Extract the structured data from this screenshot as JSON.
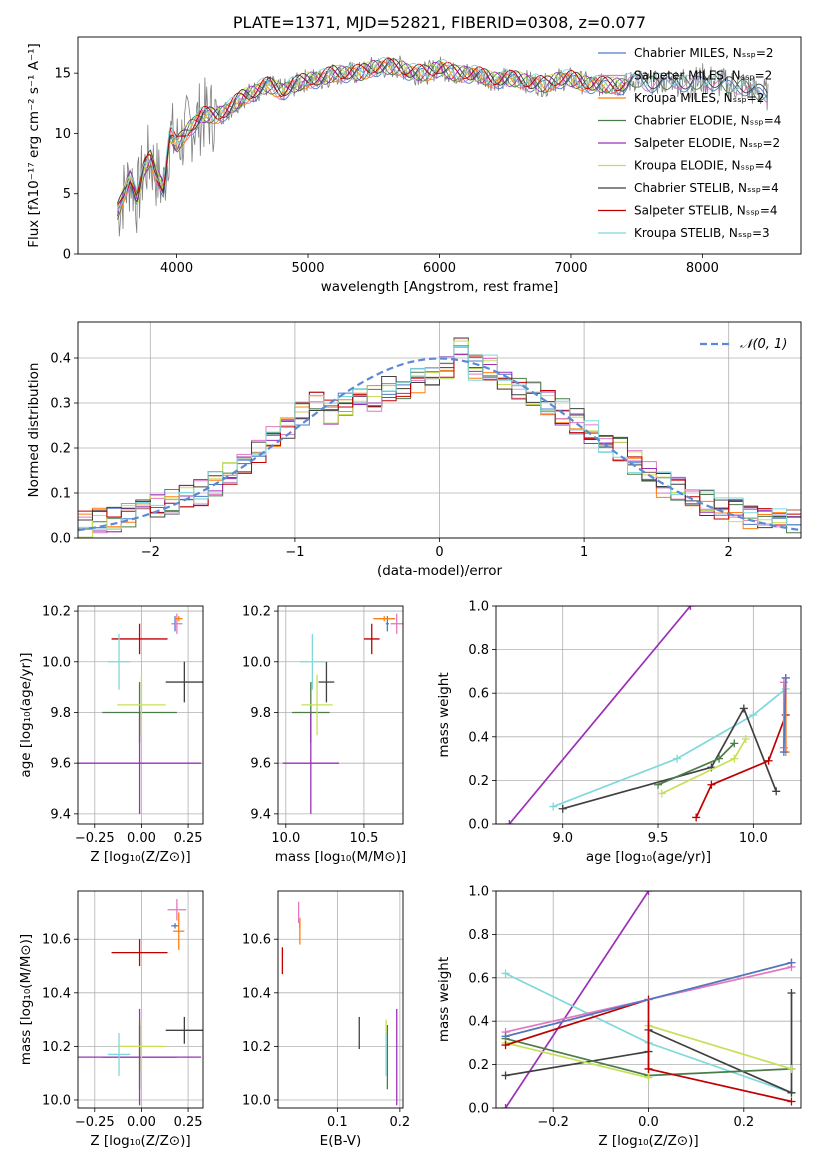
{
  "chart_data": [
    {
      "id": "spectrum",
      "type": "line",
      "title": "PLATE=1371, MJD=52821, FIBERID=0308, z=0.077",
      "xlabel": "wavelength [Angstrom, rest frame]",
      "ylabel": "Flux [fλ10⁻¹⁷ erg cm⁻² s⁻¹ A⁻¹]",
      "xlim": [
        3250,
        8750
      ],
      "ylim": [
        0,
        18
      ],
      "xticks": [
        4000,
        5000,
        6000,
        7000,
        8000
      ],
      "yticks": [
        0,
        5,
        10,
        15
      ],
      "legend": "upper-right",
      "grid": false,
      "data_series": [
        {
          "name": "data",
          "color": "#808080",
          "x": [
            3550,
            3600,
            3650,
            3700,
            3750,
            3800,
            3850,
            3900,
            3950,
            4000,
            4100,
            4200,
            4300,
            4400,
            4500,
            4600,
            4700,
            4800,
            4900,
            5000,
            5100,
            5200,
            5300,
            5400,
            5500,
            5600,
            5700,
            5800,
            5900,
            6000,
            6100,
            6200,
            6300,
            6400,
            6500,
            6600,
            6700,
            6800,
            6900,
            7000,
            7100,
            7200,
            7300,
            7400,
            7500,
            7600,
            7700,
            7800,
            7900,
            8000,
            8100,
            8200,
            8300,
            8400,
            8500
          ],
          "y": [
            3.5,
            5,
            6.5,
            4.5,
            7,
            8,
            6.5,
            5.5,
            10,
            9,
            10.5,
            11.5,
            11.5,
            12,
            13,
            13.5,
            14,
            13.5,
            14,
            14.5,
            14.5,
            15,
            15,
            15,
            15.5,
            15.5,
            15.5,
            15,
            15,
            15.5,
            15,
            15,
            14.8,
            14.5,
            14.5,
            14.5,
            14.2,
            14,
            14.5,
            14.5,
            14.2,
            14,
            14,
            14,
            14.5,
            14.2,
            14.2,
            14.5,
            14,
            14.5,
            14.3,
            14,
            14,
            13.5,
            13.2
          ]
        }
      ],
      "model_series": [
        {
          "name": "Chabrier MILES, N_SSP=2",
          "color": "#4e79c8"
        },
        {
          "name": "Salpeter MILES, N_SSP=2",
          "color": "#e377c2"
        },
        {
          "name": "Kroupa MILES, N_SSP=2",
          "color": "#ff7f0e"
        },
        {
          "name": "Chabrier ELODIE, N_SSP=4",
          "color": "#4a7c4a"
        },
        {
          "name": "Salpeter ELODIE, N_SSP=2",
          "color": "#9b30b8"
        },
        {
          "name": "Kroupa ELODIE, N_SSP=4",
          "color": "#c7e057"
        },
        {
          "name": "Chabrier STELIB, N_SSP=4",
          "color": "#404040"
        },
        {
          "name": "Salpeter STELIB, N_SSP=4",
          "color": "#c00000"
        },
        {
          "name": "Kroupa STELIB, N_SSP=3",
          "color": "#7fd8dc"
        }
      ]
    },
    {
      "id": "residuals",
      "type": "line",
      "xlabel": "(data-model)/error",
      "ylabel": "Normed distribution",
      "xlim": [
        -2.5,
        2.5
      ],
      "ylim": [
        0,
        0.48
      ],
      "xticks": [
        -2,
        -1,
        0,
        1,
        2
      ],
      "yticks": [
        0.0,
        0.1,
        0.2,
        0.3,
        0.4
      ],
      "grid": true,
      "legend": "upper-right",
      "legend_label": "𝒩(0, 1)",
      "gaussian_color": "#5a8ad6",
      "bin_edges": [
        -2.5,
        -2.4,
        -2.3,
        -2.2,
        -2.1,
        -2.0,
        -1.9,
        -1.8,
        -1.7,
        -1.6,
        -1.5,
        -1.4,
        -1.3,
        -1.2,
        -1.1,
        -1.0,
        -0.9,
        -0.8,
        -0.7,
        -0.6,
        -0.5,
        -0.4,
        -0.3,
        -0.2,
        -0.1,
        0.0,
        0.1,
        0.2,
        0.3,
        0.4,
        0.5,
        0.6,
        0.7,
        0.8,
        0.9,
        1.0,
        1.1,
        1.2,
        1.3,
        1.4,
        1.5,
        1.6,
        1.7,
        1.8,
        1.9,
        2.0,
        2.1,
        2.2,
        2.3,
        2.4,
        2.5
      ],
      "hist_base": [
        0.03,
        0.04,
        0.04,
        0.05,
        0.06,
        0.07,
        0.08,
        0.09,
        0.1,
        0.12,
        0.14,
        0.16,
        0.19,
        0.22,
        0.25,
        0.28,
        0.3,
        0.28,
        0.3,
        0.32,
        0.31,
        0.33,
        0.32,
        0.35,
        0.36,
        0.38,
        0.42,
        0.38,
        0.38,
        0.35,
        0.33,
        0.32,
        0.3,
        0.28,
        0.26,
        0.24,
        0.22,
        0.2,
        0.17,
        0.15,
        0.12,
        0.11,
        0.1,
        0.08,
        0.07,
        0.06,
        0.05,
        0.05,
        0.04,
        0.04
      ],
      "hist_colors": [
        "#4e79c8",
        "#e377c2",
        "#ff7f0e",
        "#4a7c4a",
        "#9b30b8",
        "#c7e057",
        "#404040",
        "#c00000",
        "#7fd8dc"
      ]
    },
    {
      "id": "age_vs_Z",
      "type": "scatter",
      "xlabel": "Z [log₁₀(Z/Z⊙)]",
      "ylabel": "age  [log₁₀(age/yr)]",
      "xlim": [
        -0.34,
        0.33
      ],
      "ylim": [
        9.36,
        10.22
      ],
      "xticks": [
        -0.25,
        0.0,
        0.25
      ],
      "yticks": [
        9.4,
        9.6,
        9.8,
        10.0,
        10.2
      ],
      "grid": true,
      "points": [
        {
          "color": "#4e79c8",
          "x": 0.18,
          "xerr": 0.01,
          "y": 10.15,
          "yerr": 0.03
        },
        {
          "color": "#e377c2",
          "x": 0.19,
          "xerr": 0.03,
          "y": 10.15,
          "yerr": 0.04
        },
        {
          "color": "#ff7f0e",
          "x": 0.2,
          "xerr": 0.02,
          "y": 10.17,
          "yerr": 0.01
        },
        {
          "color": "#4a7c4a",
          "x": -0.01,
          "xerr": 0.2,
          "y": 9.8,
          "yerr": 0.12
        },
        {
          "color": "#9b30b8",
          "x": -0.01,
          "xerr": 0.33,
          "y": 9.6,
          "yerr": 0.2
        },
        {
          "color": "#c7e057",
          "x": 0.0,
          "xerr": 0.13,
          "y": 9.83,
          "yerr": 0.12
        },
        {
          "color": "#404040",
          "x": 0.23,
          "xerr": 0.1,
          "y": 9.92,
          "yerr": 0.08
        },
        {
          "color": "#c00000",
          "x": -0.01,
          "xerr": 0.15,
          "y": 10.09,
          "yerr": 0.06
        },
        {
          "color": "#7fd8dc",
          "x": -0.12,
          "xerr": 0.06,
          "y": 10.0,
          "yerr": 0.11
        }
      ]
    },
    {
      "id": "age_vs_mass",
      "type": "scatter",
      "xlabel": "mass [log₁₀(M/M⊙)]",
      "ylabel": "",
      "xlim": [
        9.95,
        10.75
      ],
      "ylim": [
        9.36,
        10.22
      ],
      "xticks": [
        10.0,
        10.5
      ],
      "yticks": [
        9.4,
        9.6,
        9.8,
        10.0,
        10.2
      ],
      "grid": true,
      "points": [
        {
          "color": "#4e79c8",
          "x": 10.65,
          "xerr": 0.01,
          "y": 10.15,
          "yerr": 0.03
        },
        {
          "color": "#e377c2",
          "x": 10.71,
          "xerr": 0.04,
          "y": 10.15,
          "yerr": 0.04
        },
        {
          "color": "#ff7f0e",
          "x": 10.63,
          "xerr": 0.07,
          "y": 10.17,
          "yerr": 0.01
        },
        {
          "color": "#4a7c4a",
          "x": 10.16,
          "xerr": 0.12,
          "y": 9.8,
          "yerr": 0.12
        },
        {
          "color": "#9b30b8",
          "x": 10.16,
          "xerr": 0.18,
          "y": 9.6,
          "yerr": 0.2
        },
        {
          "color": "#c7e057",
          "x": 10.2,
          "xerr": 0.1,
          "y": 9.83,
          "yerr": 0.12
        },
        {
          "color": "#404040",
          "x": 10.26,
          "xerr": 0.05,
          "y": 9.92,
          "yerr": 0.08
        },
        {
          "color": "#c00000",
          "x": 10.55,
          "xerr": 0.05,
          "y": 10.09,
          "yerr": 0.06
        },
        {
          "color": "#7fd8dc",
          "x": 10.17,
          "xerr": 0.08,
          "y": 10.0,
          "yerr": 0.11
        }
      ]
    },
    {
      "id": "weight_vs_age",
      "type": "line",
      "xlabel": "age  [log₁₀(age/yr)]",
      "ylabel": "mass weight",
      "xlim": [
        8.65,
        10.25
      ],
      "ylim": [
        0.0,
        1.0
      ],
      "xticks": [
        9.0,
        9.5,
        10.0
      ],
      "yticks": [
        0.0,
        0.2,
        0.4,
        0.6,
        0.8,
        1.0
      ],
      "grid": true,
      "series": [
        {
          "color": "#9b30b8",
          "x": [
            8.72,
            9.67
          ],
          "y": [
            0.0,
            1.0
          ]
        },
        {
          "color": "#7fd8dc",
          "x": [
            8.95,
            9.6,
            10.0,
            10.17
          ],
          "y": [
            0.08,
            0.3,
            0.5,
            0.62
          ]
        },
        {
          "color": "#404040",
          "x": [
            9.0,
            9.78,
            9.95,
            10.12
          ],
          "y": [
            0.07,
            0.26,
            0.53,
            0.15
          ]
        },
        {
          "color": "#4a7c4a",
          "x": [
            9.5,
            9.82,
            9.9
          ],
          "y": [
            0.18,
            0.3,
            0.37
          ]
        },
        {
          "color": "#c7e057",
          "x": [
            9.52,
            9.9,
            9.96
          ],
          "y": [
            0.14,
            0.3,
            0.39
          ]
        },
        {
          "color": "#c00000",
          "x": [
            9.7,
            9.78,
            10.08,
            10.17
          ],
          "y": [
            0.03,
            0.18,
            0.29,
            0.5
          ]
        },
        {
          "color": "#ff7f0e",
          "x": [
            10.17,
            10.17
          ],
          "y": [
            0.33,
            0.67
          ]
        },
        {
          "color": "#e377c2",
          "x": [
            10.16,
            10.16
          ],
          "y": [
            0.35,
            0.65
          ]
        },
        {
          "color": "#4e79c8",
          "x": [
            10.16,
            10.17
          ],
          "y": [
            0.33,
            0.67
          ]
        }
      ]
    },
    {
      "id": "mass_vs_Z",
      "type": "scatter",
      "xlabel": "Z [log₁₀(Z/Z⊙)]",
      "ylabel": "mass [log₁₀(M/M⊙)]",
      "xlim": [
        -0.34,
        0.33
      ],
      "ylim": [
        9.97,
        10.78
      ],
      "xticks": [
        -0.25,
        0.0,
        0.25
      ],
      "yticks": [
        10.0,
        10.2,
        10.4,
        10.6
      ],
      "grid": true,
      "points": [
        {
          "color": "#4e79c8",
          "x": 0.18,
          "xerr": 0.02,
          "y": 10.65,
          "yerr": 0.01
        },
        {
          "color": "#e377c2",
          "x": 0.19,
          "xerr": 0.05,
          "y": 10.71,
          "yerr": 0.04
        },
        {
          "color": "#ff7f0e",
          "x": 0.2,
          "xerr": 0.03,
          "y": 10.63,
          "yerr": 0.07
        },
        {
          "color": "#4a7c4a",
          "x": -0.01,
          "xerr": 0.2,
          "y": 10.16,
          "yerr": 0.12
        },
        {
          "color": "#9b30b8",
          "x": -0.01,
          "xerr": 0.33,
          "y": 10.16,
          "yerr": 0.18
        },
        {
          "color": "#c7e057",
          "x": 0.0,
          "xerr": 0.13,
          "y": 10.2,
          "yerr": 0.1
        },
        {
          "color": "#404040",
          "x": 0.23,
          "xerr": 0.1,
          "y": 10.26,
          "yerr": 0.05
        },
        {
          "color": "#c00000",
          "x": -0.01,
          "xerr": 0.15,
          "y": 10.55,
          "yerr": 0.05
        },
        {
          "color": "#7fd8dc",
          "x": -0.12,
          "xerr": 0.06,
          "y": 10.17,
          "yerr": 0.08
        }
      ]
    },
    {
      "id": "mass_vs_ebv",
      "type": "scatter",
      "xlabel": "E(B-V)",
      "ylabel": "",
      "xlim": [
        0.005,
        0.205
      ],
      "ylim": [
        9.97,
        10.78
      ],
      "xticks": [
        0.1,
        0.2
      ],
      "yticks": [
        10.0,
        10.2,
        10.4,
        10.6
      ],
      "grid": true,
      "points": [
        {
          "color": "#4e79c8",
          "x": 0.04,
          "xerr": 0,
          "y": 10.65,
          "yerr": 0.01
        },
        {
          "color": "#e377c2",
          "x": 0.038,
          "xerr": 0,
          "y": 10.7,
          "yerr": 0.04
        },
        {
          "color": "#ff7f0e",
          "x": 0.04,
          "xerr": 0,
          "y": 10.63,
          "yerr": 0.05
        },
        {
          "color": "#4a7c4a",
          "x": 0.18,
          "xerr": 0,
          "y": 10.16,
          "yerr": 0.12
        },
        {
          "color": "#9b30b8",
          "x": 0.195,
          "xerr": 0,
          "y": 10.16,
          "yerr": 0.18
        },
        {
          "color": "#c7e057",
          "x": 0.178,
          "xerr": 0,
          "y": 10.2,
          "yerr": 0.1
        },
        {
          "color": "#404040",
          "x": 0.135,
          "xerr": 0,
          "y": 10.25,
          "yerr": 0.06
        },
        {
          "color": "#c00000",
          "x": 0.012,
          "xerr": 0,
          "y": 10.52,
          "yerr": 0.05
        },
        {
          "color": "#7fd8dc",
          "x": 0.178,
          "xerr": 0,
          "y": 10.17,
          "yerr": 0.08
        }
      ]
    },
    {
      "id": "weight_vs_Z",
      "type": "line",
      "xlabel": "Z [log₁₀(Z/Z⊙)]",
      "ylabel": "mass weight",
      "xlim": [
        -0.32,
        0.32
      ],
      "ylim": [
        0.0,
        1.0
      ],
      "xticks": [
        -0.2,
        0.0,
        0.2
      ],
      "yticks": [
        0.0,
        0.2,
        0.4,
        0.6,
        0.8,
        1.0
      ],
      "grid": true,
      "series": [
        {
          "color": "#9b30b8",
          "x": [
            -0.3,
            0.0
          ],
          "y": [
            0.0,
            1.0
          ]
        },
        {
          "color": "#7fd8dc",
          "x": [
            -0.3,
            0.0,
            0.3
          ],
          "y": [
            0.62,
            0.3,
            0.07
          ]
        },
        {
          "color": "#404040",
          "x": [
            -0.3,
            0.0,
            0.0,
            0.3,
            0.3
          ],
          "y": [
            0.15,
            0.26,
            0.36,
            0.07,
            0.53
          ]
        },
        {
          "color": "#4a7c4a",
          "x": [
            -0.3,
            0.0,
            0.3
          ],
          "y": [
            0.32,
            0.15,
            0.18
          ]
        },
        {
          "color": "#c7e057",
          "x": [
            -0.3,
            0.0,
            0.0,
            0.3
          ],
          "y": [
            0.3,
            0.14,
            0.38,
            0.18
          ]
        },
        {
          "color": "#c00000",
          "x": [
            -0.3,
            0.0,
            0.0,
            0.3
          ],
          "y": [
            0.29,
            0.5,
            0.18,
            0.03
          ]
        },
        {
          "color": "#ff7f0e",
          "x": [
            -0.3,
            0.3
          ],
          "y": [
            0.33,
            0.67
          ]
        },
        {
          "color": "#e377c2",
          "x": [
            -0.3,
            0.3
          ],
          "y": [
            0.35,
            0.65
          ]
        },
        {
          "color": "#4e79c8",
          "x": [
            -0.3,
            0.3
          ],
          "y": [
            0.33,
            0.67
          ]
        }
      ]
    }
  ]
}
